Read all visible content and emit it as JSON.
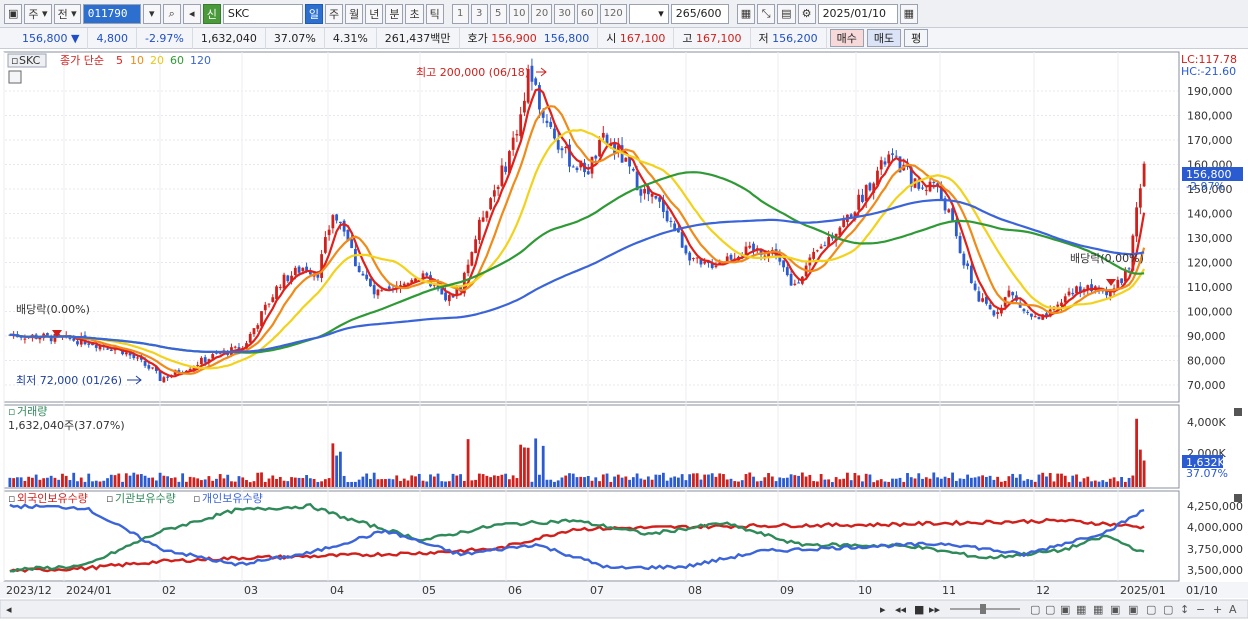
{
  "toolbar": {
    "period_primary": "주",
    "period_secondary": "전",
    "code": "011790",
    "badge": "신",
    "name": "SKC",
    "periods": [
      "일",
      "주",
      "월",
      "년",
      "분",
      "초",
      "틱"
    ],
    "intervals": [
      "1",
      "3",
      "5",
      "10",
      "20",
      "30",
      "60",
      "120"
    ],
    "count": "265",
    "total": "/600",
    "date": "2025/01/10"
  },
  "quote": {
    "price": "156,800",
    "change": "4,800",
    "change_pct": "-2.97%",
    "volume": "1,632,040",
    "volume_ratio": "37.07%",
    "turnover": "4.31%",
    "amount": "261,437백만",
    "ask_label": "호가",
    "ask": "156,900",
    "bid": "156,800",
    "open_label": "시",
    "open": "167,100",
    "high_label": "고",
    "high": "167,100",
    "low_label": "저",
    "low": "156,200",
    "buy_label": "매수",
    "sell_label": "매도",
    "eval_label": "평"
  },
  "price_panel": {
    "title": "SKC",
    "legend_prefix": "종가 단순",
    "ma": [
      {
        "period": "5",
        "color": "#e0201a"
      },
      {
        "period": "10",
        "color": "#f08a18"
      },
      {
        "period": "20",
        "color": "#f2d21a"
      },
      {
        "period": "60",
        "color": "#2f9a35"
      },
      {
        "period": "120",
        "color": "#3a64d8"
      }
    ],
    "lc": "LC:117.78",
    "hc": "HC:-21.60",
    "high_note": "최고 200,000 (06/18)",
    "low_note": "최저 72,000 (01/26)",
    "dividend_1": "배당락(0.00%)",
    "dividend_2": "배당락(0.00%)",
    "current_price": "156,800",
    "current_pct": "-2.97%",
    "y_ticks": [
      "190,000",
      "180,000",
      "170,000",
      "160,000",
      "150,000",
      "140,000",
      "130,000",
      "120,000",
      "110,000",
      "100,000",
      "90,000",
      "80,000",
      "70,000"
    ]
  },
  "volume_panel": {
    "title": "거래량",
    "value": "1,632,040주(37.07%)",
    "y_tick": "4,000K",
    "y_tick_2": "2,000K",
    "current": "1,632K",
    "current_pct": "37.07%"
  },
  "holdings_panel": {
    "series": [
      {
        "name": "외국인보유수량",
        "color": "#d0201c"
      },
      {
        "name": "기관보유수량",
        "color": "#2f8a5a"
      },
      {
        "name": "개인보유수량",
        "color": "#3a64d8"
      }
    ],
    "y_ticks": [
      "4,250,000",
      "4,000,000",
      "3,750,000",
      "3,500,000"
    ]
  },
  "x_axis": {
    "labels": [
      "2023/12",
      "2024/01",
      "02",
      "03",
      "04",
      "05",
      "06",
      "07",
      "08",
      "09",
      "10",
      "11",
      "12",
      "2025/01"
    ],
    "right_label": "01/10"
  },
  "colors": {
    "up": "#d0201c",
    "down": "#2a5bd0"
  }
}
